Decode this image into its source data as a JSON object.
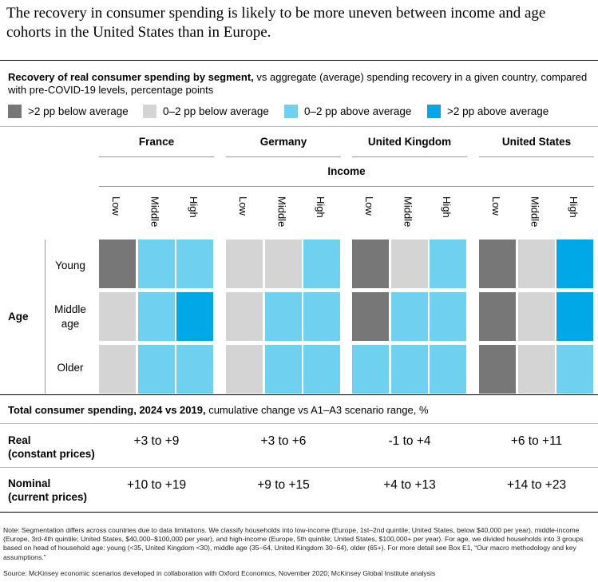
{
  "headline": "The recovery in consumer spending is likely to be more uneven between income and age cohorts in the United States than in Europe.",
  "subtitle": {
    "bold": "Recovery of real consumer spending by segment,",
    "rest": " vs aggregate (average) spending recovery in a given country, compared with pre-COVID-19 levels, percentage points"
  },
  "legend": [
    {
      "label": ">2 pp below average",
      "color": "#777777"
    },
    {
      "label": "0–2 pp below average",
      "color": "#d4d4d4"
    },
    {
      "label": "0–2 pp above average",
      "color": "#6fd0f0"
    },
    {
      "label": ">2 pp above average",
      "color": "#00a8e8"
    }
  ],
  "chart_data": {
    "type": "heatmap",
    "countries": [
      "France",
      "Germany",
      "United Kingdom",
      "United States"
    ],
    "income_label": "Income",
    "income_levels": [
      "Low",
      "Middle",
      "High"
    ],
    "age_label": "Age",
    "age_groups": [
      "Young",
      "Middle age",
      "Older"
    ],
    "categories": [
      ">2 pp below average",
      "0–2 pp below average",
      "0–2 pp above average",
      ">2 pp above average"
    ],
    "values": {
      "France": [
        [
          0,
          2,
          2
        ],
        [
          1,
          2,
          3
        ],
        [
          1,
          2,
          2
        ]
      ],
      "Germany": [
        [
          1,
          1,
          2
        ],
        [
          1,
          2,
          2
        ],
        [
          1,
          2,
          2
        ]
      ],
      "United Kingdom": [
        [
          0,
          1,
          2
        ],
        [
          0,
          2,
          2
        ],
        [
          2,
          2,
          2
        ]
      ],
      "United States": [
        [
          0,
          1,
          3
        ],
        [
          0,
          1,
          3
        ],
        [
          0,
          1,
          2
        ]
      ]
    }
  },
  "totals": {
    "title_bold": "Total consumer spending, 2024 vs 2019,",
    "title_rest": "cumulative change vs A1–A3 scenario range, %",
    "rows": [
      {
        "label_line1": "Real",
        "label_line2": "(constant prices)",
        "values": [
          "+3 to +9",
          "+3 to +6",
          "-1 to +4",
          "+6 to +11"
        ]
      },
      {
        "label_line1": "Nominal",
        "label_line2": "(current prices)",
        "values": [
          "+10 to +19",
          "+9 to +15",
          "+4 to +13",
          "+14 to +23"
        ]
      }
    ]
  },
  "note": "Note: Segmentation differs across countries due to data limitations. We classify households into low-income (Europe, 1st–2nd quintile; United States, below $40,000 per year), middle-income (Europe, 3rd-4th quintile; United States, $40,000–$100,000 per year), and high-income (Europe, 5th quintile; United States, $100,000+ per year). For age, we divided households into 3 groups based on head of household age: young (<35, United Kingdom <30), middle age (35–64, United Kingdom 30–64), older (65+). For more detail see Box E1, “Our macro methodology and key assumptions.”",
  "source": "Source: McKinsey economic scenarios developed in collaboration with Oxford Economics, November 2020; McKinsey Global Institute analysis"
}
